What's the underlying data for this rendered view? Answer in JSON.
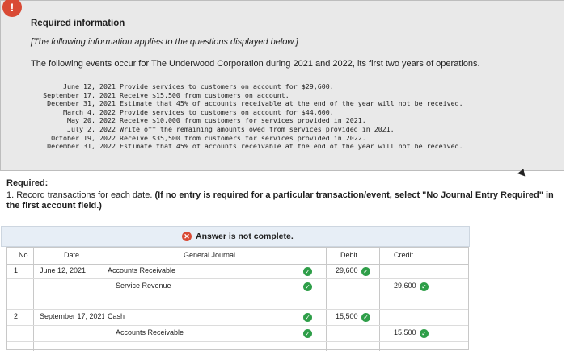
{
  "info": {
    "alert_icon": "!",
    "title": "Required information",
    "note": "[The following information applies to the questions displayed below.]",
    "intro": "The following events occur for The Underwood Corporation during 2021 and 2022, its first two years of operations.",
    "events": [
      {
        "date": "June 12, 2021",
        "text": "Provide services to customers on account for $29,600."
      },
      {
        "date": "September 17, 2021",
        "text": "Receive $15,500 from customers on account."
      },
      {
        "date": "December 31, 2021",
        "text": "Estimate that 45% of accounts receivable at the end of the year will not be received."
      },
      {
        "date": "March 4, 2022",
        "text": "Provide services to customers on account for $44,600."
      },
      {
        "date": "May 20, 2022",
        "text": "Receive $10,000 from customers for services provided in 2021."
      },
      {
        "date": "July 2, 2022",
        "text": "Write off the remaining amounts owed from services provided in 2021."
      },
      {
        "date": "October 19, 2022",
        "text": "Receive $35,500 from customers for services provided in 2022."
      },
      {
        "date": "December 31, 2022",
        "text": "Estimate that 45% of accounts receivable at the end of the year will not be received."
      }
    ]
  },
  "required": {
    "label": "Required:",
    "text_plain": "1. Record transactions for each date.",
    "text_bold": "(If no entry is required for a particular transaction/event, select \"No Journal Entry Required\" in the first account field.)"
  },
  "answer": {
    "status": "Answer is not complete.",
    "icon": "x-icon"
  },
  "table": {
    "headers": {
      "no": "No",
      "date": "Date",
      "general_journal": "General Journal",
      "debit": "Debit",
      "credit": "Credit"
    },
    "rows": [
      {
        "no": "1",
        "date": "June 12, 2021",
        "account": "Accounts Receivable",
        "debit": "29,600",
        "credit": ""
      },
      {
        "no": "",
        "date": "",
        "account": "Service Revenue",
        "debit": "",
        "credit": "29,600"
      },
      {
        "no": "2",
        "date": "September 17, 2021",
        "account": "Cash",
        "debit": "15,500",
        "credit": ""
      },
      {
        "no": "",
        "date": "",
        "account": "Accounts Receivable",
        "debit": "",
        "credit": "15,500"
      }
    ]
  },
  "colors": {
    "alert": "#d94a35",
    "check": "#2e9e48",
    "banner": "#e7eef6"
  }
}
